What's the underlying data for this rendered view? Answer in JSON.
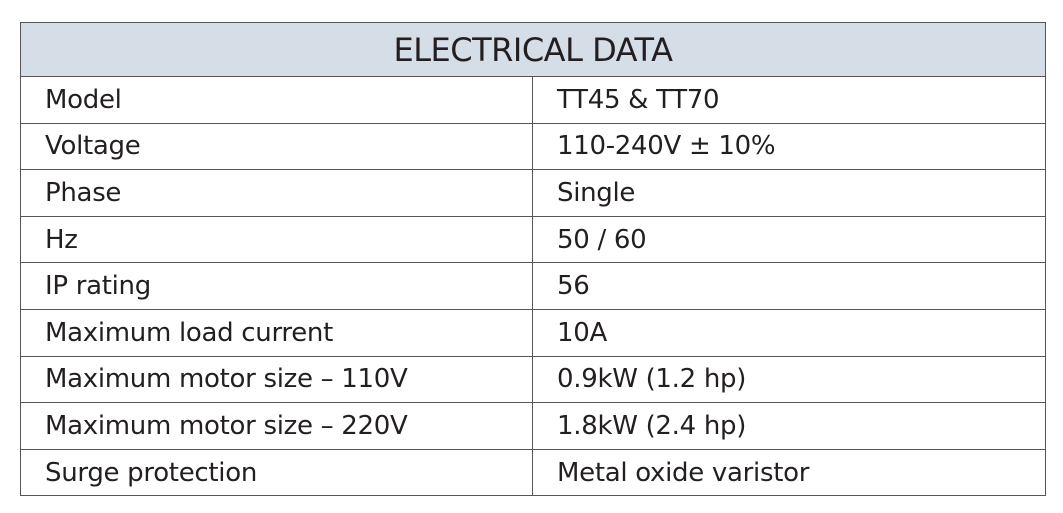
{
  "table": {
    "title": "ELECTRICAL DATA",
    "rows": [
      [
        "Model",
        "TT45 & TT70"
      ],
      [
        "Voltage",
        "110-240V ± 10%"
      ],
      [
        "Phase",
        "Single"
      ],
      [
        "Hz",
        "50 / 60"
      ],
      [
        "IP rating",
        "56"
      ],
      [
        "Maximum load current",
        "10A"
      ],
      [
        "Maximum motor size – 110V",
        "0.9kW (1.2 hp)"
      ],
      [
        "Maximum motor size – 220V",
        "1.8kW (2.4 hp)"
      ],
      [
        "Surge protection",
        "Metal oxide varistor"
      ]
    ]
  }
}
